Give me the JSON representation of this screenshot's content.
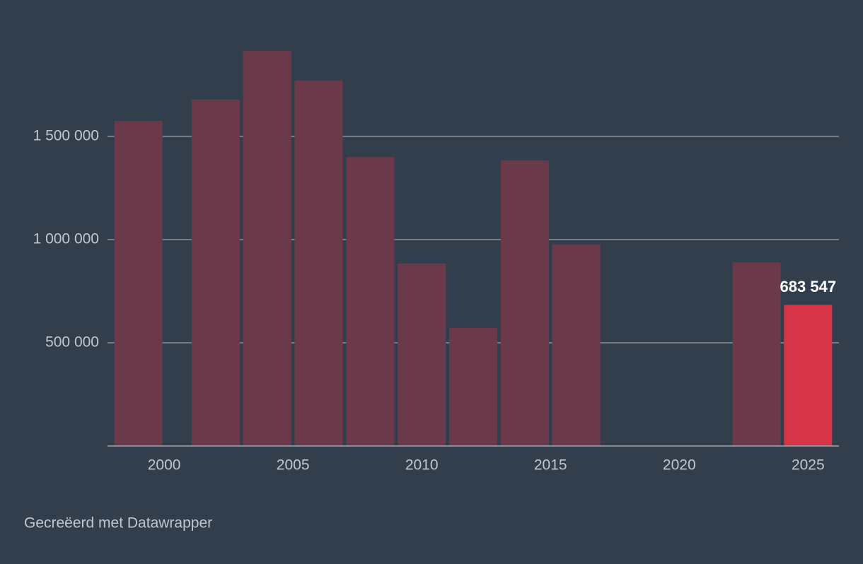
{
  "chart_data": {
    "type": "bar",
    "x": [
      1999,
      2002,
      2004,
      2006,
      2008,
      2010,
      2012,
      2014,
      2016,
      2023,
      2025
    ],
    "values": [
      1575000,
      1678000,
      1914000,
      1770000,
      1400000,
      884000,
      572000,
      1384000,
      976000,
      890000,
      683547
    ],
    "value_labels": [
      null,
      null,
      null,
      null,
      null,
      null,
      null,
      null,
      null,
      null,
      "683 547"
    ],
    "colors": [
      "#6b3a4a",
      "#6b3a4a",
      "#6b3a4a",
      "#6b3a4a",
      "#6b3a4a",
      "#6b3a4a",
      "#6b3a4a",
      "#6b3a4a",
      "#6b3a4a",
      "#6b3a4a",
      "#d63447"
    ],
    "xlim": [
      1997.8,
      2026.2
    ],
    "xticks": [
      2000,
      2005,
      2010,
      2015,
      2020,
      2025
    ],
    "ylim": [
      0,
      2000000
    ],
    "yticks": [
      {
        "value": 500000,
        "label": "500 000"
      },
      {
        "value": 1000000,
        "label": "1 000 000"
      },
      {
        "value": 1500000,
        "label": "1 500 000"
      }
    ],
    "grid": true,
    "source": "Gecreëerd met Datawrapper"
  }
}
